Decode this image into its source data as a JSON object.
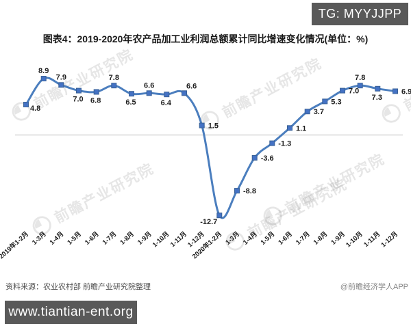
{
  "title": {
    "text": "图表4：2019-2020年农产品加工业利润总额累计同比增速变化情况(单位：%)"
  },
  "badges": {
    "top_right": "TG: MYYJJPP",
    "bottom_left": "www.tiantian-ent.org",
    "background": "#595959",
    "text_color": "#ffffff"
  },
  "footer": {
    "source": "资料来源：农业农村部 前瞻产业研究院整理",
    "credit": "@前瞻经济学人APP"
  },
  "watermark": {
    "text": "前瞻产业研究院",
    "logo": "qianzhan-circle-logo"
  },
  "chart_data": {
    "type": "line",
    "smooth": true,
    "title": "图表4：2019-2020年农产品加工业利润总额累计同比增速变化情况",
    "unit": "%",
    "xlabel": "",
    "ylabel": "",
    "ylim": [
      -14.5,
      10.5
    ],
    "grid": false,
    "zero_line": true,
    "legend": "none",
    "line_color": "#4b7ebe",
    "marker_color": "#4472c4",
    "marker_edge_color": "#3a6296",
    "marker_shape": "square",
    "zero_line_color": "#e3e3e3",
    "label_color": "#1f1f1f",
    "axis_label_color": "#1a1a1a",
    "categories": [
      "2019年1-2月",
      "1-3月",
      "1-4月",
      "1-5月",
      "1-6月",
      "1-7月",
      "1-8月",
      "1-9月",
      "1-10月",
      "1-11月",
      "1-12月",
      "2020年1-2月",
      "1-3月",
      "1-4月",
      "1-5月",
      "1-6月",
      "1-7月",
      "1-8月",
      "1-9月",
      "1-10月",
      "1-11月",
      "1-12月"
    ],
    "values": [
      4.8,
      8.9,
      7.9,
      7.0,
      6.8,
      7.8,
      6.5,
      6.6,
      6.4,
      6.6,
      1.5,
      -12.7,
      -8.8,
      -3.6,
      -1.3,
      1.1,
      3.7,
      5.3,
      7.0,
      7.8,
      7.3,
      6.9
    ],
    "label_positions": [
      "below-right",
      "above",
      "above",
      "below",
      "below",
      "above",
      "below",
      "above",
      "below",
      "above-right",
      "right",
      "below-left",
      "right",
      "right",
      "right",
      "right",
      "right",
      "right",
      "right",
      "above",
      "below",
      "right"
    ]
  }
}
